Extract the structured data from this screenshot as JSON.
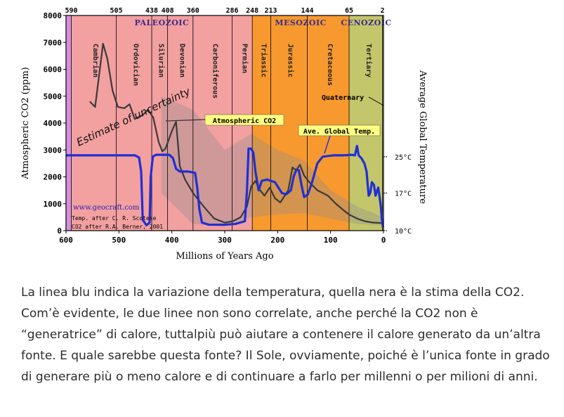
{
  "chart_data": {
    "type": "line",
    "title": "",
    "xlabel": "Millions of Years Ago",
    "ylabel_left": "Atmospheric CO2 (ppm)",
    "ylabel_right": "Average Global Temperature",
    "xlim": [
      600,
      0
    ],
    "ylim": [
      0,
      8000
    ],
    "x_ticks": [
      600,
      500,
      400,
      300,
      200,
      100,
      0
    ],
    "y_ticks": [
      0,
      1000,
      2000,
      3000,
      4000,
      5000,
      6000,
      7000,
      8000
    ],
    "top_ticks": [
      {
        "x": 590,
        "label": "590"
      },
      {
        "x": 505,
        "label": "505"
      },
      {
        "x": 438,
        "label": "438"
      },
      {
        "x": 408,
        "label": "408"
      },
      {
        "x": 360,
        "label": "360"
      },
      {
        "x": 286,
        "label": "286"
      },
      {
        "x": 248,
        "label": "248"
      },
      {
        "x": 213,
        "label": "213"
      },
      {
        "x": 144,
        "label": "144"
      },
      {
        "x": 65,
        "label": "65"
      },
      {
        "x": 2,
        "label": "2"
      }
    ],
    "temp_ticks": [
      {
        "y": 2750,
        "label": "25°C"
      },
      {
        "y": 1400,
        "label": "17°C"
      },
      {
        "y": 0,
        "label": "10°C"
      }
    ],
    "eras": [
      {
        "name": "PALEOZOIC",
        "start": 590,
        "end": 248,
        "color": "#f3a0a0",
        "label_color": "#3a2a8a"
      },
      {
        "name": "MESOZOIC",
        "start": 248,
        "end": 65,
        "color": "#f7992e",
        "label_color": "#3a2a8a"
      },
      {
        "name": "CENOZOIC",
        "start": 65,
        "end": 0,
        "color": "#c3c66b",
        "label_color": "#3a2a8a"
      }
    ],
    "pre_band": {
      "start": 600,
      "end": 590,
      "color": "#d490dd"
    },
    "periods": [
      {
        "name": "Cambrian",
        "start": 590,
        "end": 505,
        "label_x": 548
      },
      {
        "name": "Ordovician",
        "start": 505,
        "end": 438,
        "label_x": 472
      },
      {
        "name": "Silurian",
        "start": 438,
        "end": 408,
        "label_x": 424
      },
      {
        "name": "Devonian",
        "start": 408,
        "end": 360,
        "label_x": 384
      },
      {
        "name": "Carboniferous",
        "start": 360,
        "end": 286,
        "label_x": 322
      },
      {
        "name": "Permian",
        "start": 286,
        "end": 248,
        "label_x": 266
      },
      {
        "name": "Triassic",
        "start": 248,
        "end": 213,
        "label_x": 230
      },
      {
        "name": "Jurassic",
        "start": 213,
        "end": 144,
        "label_x": 180
      },
      {
        "name": "Cretaceous",
        "start": 144,
        "end": 65,
        "label_x": 105
      },
      {
        "name": "Tertiary",
        "start": 65,
        "end": 2,
        "label_x": 32
      }
    ],
    "series": [
      {
        "name": "Atmospheric CO2",
        "color": "#3a3a3a",
        "points": [
          [
            555,
            4800
          ],
          [
            545,
            4600
          ],
          [
            538,
            5700
          ],
          [
            530,
            6950
          ],
          [
            522,
            6400
          ],
          [
            512,
            5200
          ],
          [
            502,
            4600
          ],
          [
            490,
            4550
          ],
          [
            480,
            4700
          ],
          [
            470,
            4150
          ],
          [
            455,
            4300
          ],
          [
            445,
            4500
          ],
          [
            435,
            4200
          ],
          [
            425,
            3300
          ],
          [
            418,
            2950
          ],
          [
            412,
            3050
          ],
          [
            400,
            3700
          ],
          [
            392,
            4050
          ],
          [
            385,
            2400
          ],
          [
            375,
            1900
          ],
          [
            360,
            1400
          ],
          [
            340,
            900
          ],
          [
            320,
            450
          ],
          [
            300,
            300
          ],
          [
            285,
            350
          ],
          [
            270,
            500
          ],
          [
            258,
            900
          ],
          [
            250,
            1650
          ],
          [
            242,
            1850
          ],
          [
            235,
            1550
          ],
          [
            225,
            1300
          ],
          [
            215,
            1600
          ],
          [
            205,
            1200
          ],
          [
            195,
            1050
          ],
          [
            180,
            1500
          ],
          [
            172,
            2350
          ],
          [
            165,
            2250
          ],
          [
            158,
            2450
          ],
          [
            150,
            2050
          ],
          [
            140,
            1800
          ],
          [
            125,
            1500
          ],
          [
            105,
            1300
          ],
          [
            90,
            1000
          ],
          [
            75,
            750
          ],
          [
            65,
            600
          ],
          [
            50,
            450
          ],
          [
            35,
            350
          ],
          [
            20,
            300
          ],
          [
            0,
            280
          ]
        ]
      },
      {
        "name": "Ave. Global Temp.",
        "color": "#1f2fd6",
        "points": [
          [
            600,
            2800
          ],
          [
            590,
            2800
          ],
          [
            560,
            2800
          ],
          [
            520,
            2800
          ],
          [
            470,
            2800
          ],
          [
            462,
            2720
          ],
          [
            458,
            2200
          ],
          [
            455,
            400
          ],
          [
            448,
            200
          ],
          [
            442,
            300
          ],
          [
            440,
            2000
          ],
          [
            436,
            2750
          ],
          [
            430,
            2820
          ],
          [
            405,
            2820
          ],
          [
            398,
            2700
          ],
          [
            392,
            2300
          ],
          [
            385,
            2200
          ],
          [
            370,
            2200
          ],
          [
            356,
            2150
          ],
          [
            352,
            1600
          ],
          [
            348,
            800
          ],
          [
            343,
            300
          ],
          [
            330,
            220
          ],
          [
            300,
            220
          ],
          [
            280,
            250
          ],
          [
            262,
            350
          ],
          [
            258,
            1500
          ],
          [
            255,
            3050
          ],
          [
            250,
            3050
          ],
          [
            246,
            2900
          ],
          [
            242,
            2200
          ],
          [
            236,
            1500
          ],
          [
            230,
            1850
          ],
          [
            220,
            1900
          ],
          [
            205,
            1800
          ],
          [
            192,
            1400
          ],
          [
            184,
            1350
          ],
          [
            175,
            1500
          ],
          [
            170,
            2000
          ],
          [
            165,
            2250
          ],
          [
            160,
            2250
          ],
          [
            155,
            1700
          ],
          [
            150,
            1250
          ],
          [
            143,
            1350
          ],
          [
            135,
            1800
          ],
          [
            125,
            2500
          ],
          [
            115,
            2750
          ],
          [
            95,
            2800
          ],
          [
            75,
            2800
          ],
          [
            60,
            2820
          ],
          [
            54,
            2800
          ],
          [
            50,
            3150
          ],
          [
            47,
            2800
          ],
          [
            42,
            2700
          ],
          [
            36,
            2500
          ],
          [
            32,
            2200
          ],
          [
            28,
            1300
          ],
          [
            25,
            1400
          ],
          [
            22,
            1800
          ],
          [
            18,
            1700
          ],
          [
            15,
            1300
          ],
          [
            10,
            1600
          ],
          [
            7,
            1200
          ],
          [
            5,
            900
          ],
          [
            3,
            400
          ],
          [
            1,
            120
          ]
        ]
      }
    ],
    "uncertainty_band": {
      "points": [
        [
          420,
          5000
        ],
        [
          360,
          4500
        ],
        [
          300,
          3000
        ],
        [
          250,
          3600
        ],
        [
          200,
          3000
        ],
        [
          150,
          2600
        ],
        [
          100,
          1500
        ],
        [
          50,
          900
        ],
        [
          0,
          500
        ],
        [
          0,
          200
        ],
        [
          50,
          250
        ],
        [
          100,
          450
        ],
        [
          150,
          650
        ],
        [
          200,
          600
        ],
        [
          250,
          500
        ],
        [
          300,
          150
        ],
        [
          360,
          250
        ],
        [
          420,
          1400
        ]
      ],
      "color": "#8c8c8c"
    },
    "labels": {
      "co2_label": "Atmospheric CO2",
      "temp_label": "Ave. Global Temp.",
      "uncertainty": "Estimate of uncertainty",
      "quaternary": "Quaternary",
      "site": "www.geocraft.com",
      "credit_1": "Temp. after C. R. Scotese",
      "credit_2": "CO2 after R.A. Berner, 2001"
    },
    "label_bg_color": "#ffff80"
  },
  "caption": "La linea blu indica la variazione della temperatura, quella nera è la stima della CO2. Com’è evidente, le due linee non sono correlate, anche perché la CO2 non è “generatrice” di calore, tuttalpiù può aiutare a contenere il calore generato da un’altra fonte. E quale sarebbe questa fonte? Il Sole, ovviamente, poiché è l’unica fonte in grado di generare più o meno calore e di continuare a farlo per millenni o per milioni di anni."
}
